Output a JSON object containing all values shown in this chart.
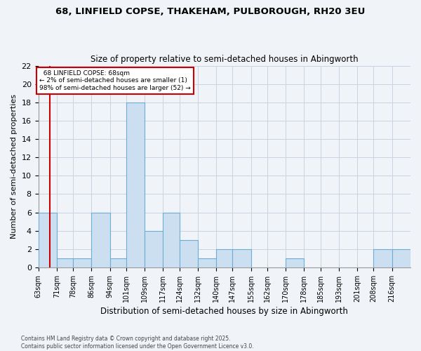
{
  "title1": "68, LINFIELD COPSE, THAKEHAM, PULBOROUGH, RH20 3EU",
  "title2": "Size of property relative to semi-detached houses in Abingworth",
  "xlabel": "Distribution of semi-detached houses by size in Abingworth",
  "ylabel": "Number of semi-detached properties",
  "bin_labels": [
    "63sqm",
    "71sqm",
    "78sqm",
    "86sqm",
    "94sqm",
    "101sqm",
    "109sqm",
    "117sqm",
    "124sqm",
    "132sqm",
    "140sqm",
    "147sqm",
    "155sqm",
    "162sqm",
    "170sqm",
    "178sqm",
    "185sqm",
    "193sqm",
    "201sqm",
    "208sqm",
    "216sqm"
  ],
  "bin_edges": [
    63,
    71,
    78,
    86,
    94,
    101,
    109,
    117,
    124,
    132,
    140,
    147,
    155,
    162,
    170,
    178,
    185,
    193,
    201,
    208,
    216,
    224
  ],
  "bar_heights": [
    6,
    1,
    1,
    6,
    1,
    18,
    4,
    6,
    3,
    1,
    2,
    2,
    0,
    0,
    1,
    0,
    0,
    0,
    0,
    2,
    2
  ],
  "bar_color": "#ccdff0",
  "bar_edge_color": "#6aaed6",
  "property_size": 68,
  "property_label": "68 LINFIELD COPSE: 68sqm",
  "pct_smaller": 2,
  "pct_larger": 98,
  "n_smaller": 1,
  "n_larger": 52,
  "annotation_box_color": "#ffffff",
  "annotation_box_edge": "#cc0000",
  "red_line_color": "#cc0000",
  "ylim": [
    0,
    22
  ],
  "yticks": [
    0,
    2,
    4,
    6,
    8,
    10,
    12,
    14,
    16,
    18,
    20,
    22
  ],
  "footer": "Contains HM Land Registry data © Crown copyright and database right 2025.\nContains public sector information licensed under the Open Government Licence v3.0.",
  "bg_color": "#f0f4f8",
  "grid_color": "#c8d4e0"
}
